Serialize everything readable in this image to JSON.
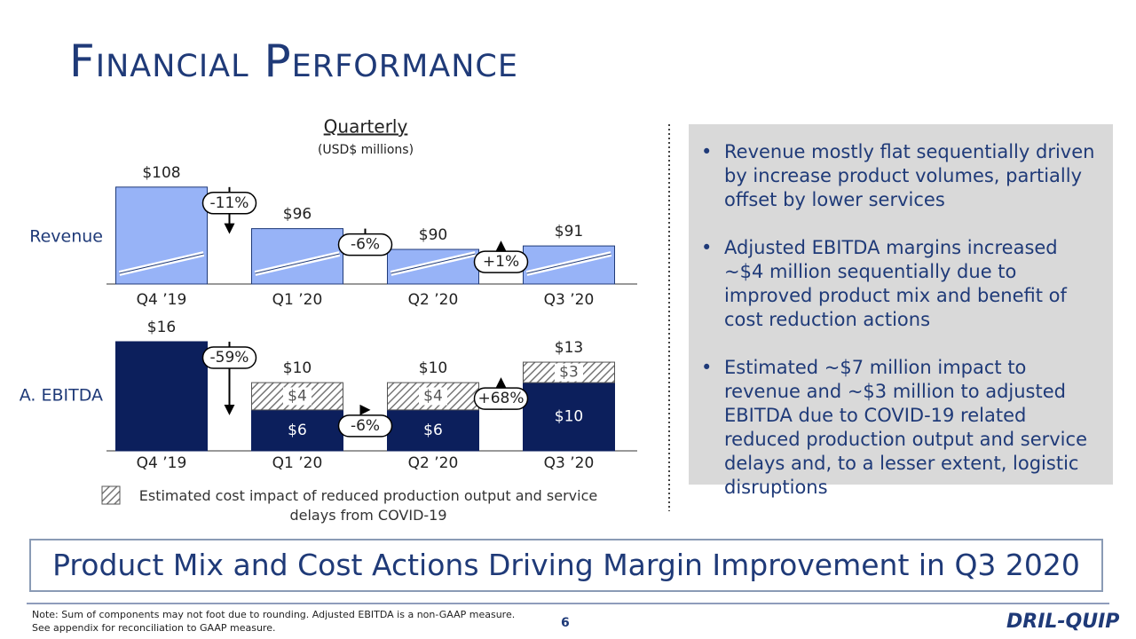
{
  "title": "Financial Performance",
  "chart_header": "Quarterly",
  "chart_subheader": "(USD$ millions)",
  "chart_data": [
    {
      "type": "bar",
      "row_label": "Revenue",
      "categories": [
        "Q4 ’19",
        "Q1 ’20",
        "Q2 ’20",
        "Q3 ’20"
      ],
      "values": [
        108,
        96,
        90,
        91
      ],
      "value_labels": [
        "$108",
        "$96",
        "$90",
        "$91"
      ],
      "color": "#97b3f7",
      "ylim": [
        80,
        110
      ],
      "broken_axis": true,
      "annotations": [
        "-11%",
        "-6%",
        "+1%"
      ]
    },
    {
      "type": "stacked-bar",
      "row_label": "A. EBITDA",
      "categories": [
        "Q4 ’19",
        "Q1 ’20",
        "Q2 ’20",
        "Q3 ’20"
      ],
      "series": [
        {
          "color": "#0c1f5c",
          "values": [
            16,
            6,
            6,
            10
          ],
          "value_labels": [
            null,
            "$6",
            "$6",
            "$10"
          ]
        },
        {
          "name": "Estimated cost impact of reduced production output and service delays from COVID-19",
          "color": "#777777",
          "pattern": "hatch",
          "values": [
            null,
            4,
            4,
            3
          ],
          "value_labels": [
            null,
            "$4",
            "$4",
            "$3"
          ]
        }
      ],
      "total_labels": [
        "$16",
        "$10",
        "$10",
        "$13"
      ],
      "ylim": [
        0,
        16
      ],
      "annotations": [
        "-59%",
        "-6%",
        "+68%"
      ]
    }
  ],
  "bullets": [
    "Revenue mostly flat sequentially driven by increase product volumes, partially offset by lower services",
    "Adjusted EBITDA margins increased ~$4 million sequentially due to improved product mix and benefit of cost reduction actions",
    "Estimated ~$7 million impact to revenue and ~$3 million to adjusted EBITDA due to COVID-19 related reduced production output and service delays and, to a lesser extent, logistic disruptions"
  ],
  "banner": "Product Mix and Cost Actions Driving Margin Improvement in Q3 2020",
  "note": [
    "Note: Sum of components may not foot due to rounding. Adjusted EBITDA is a non-GAAP measure.",
    "See appendix for reconciliation to GAAP measure."
  ],
  "page_number": "6",
  "logo": "DRIL-QUIP"
}
